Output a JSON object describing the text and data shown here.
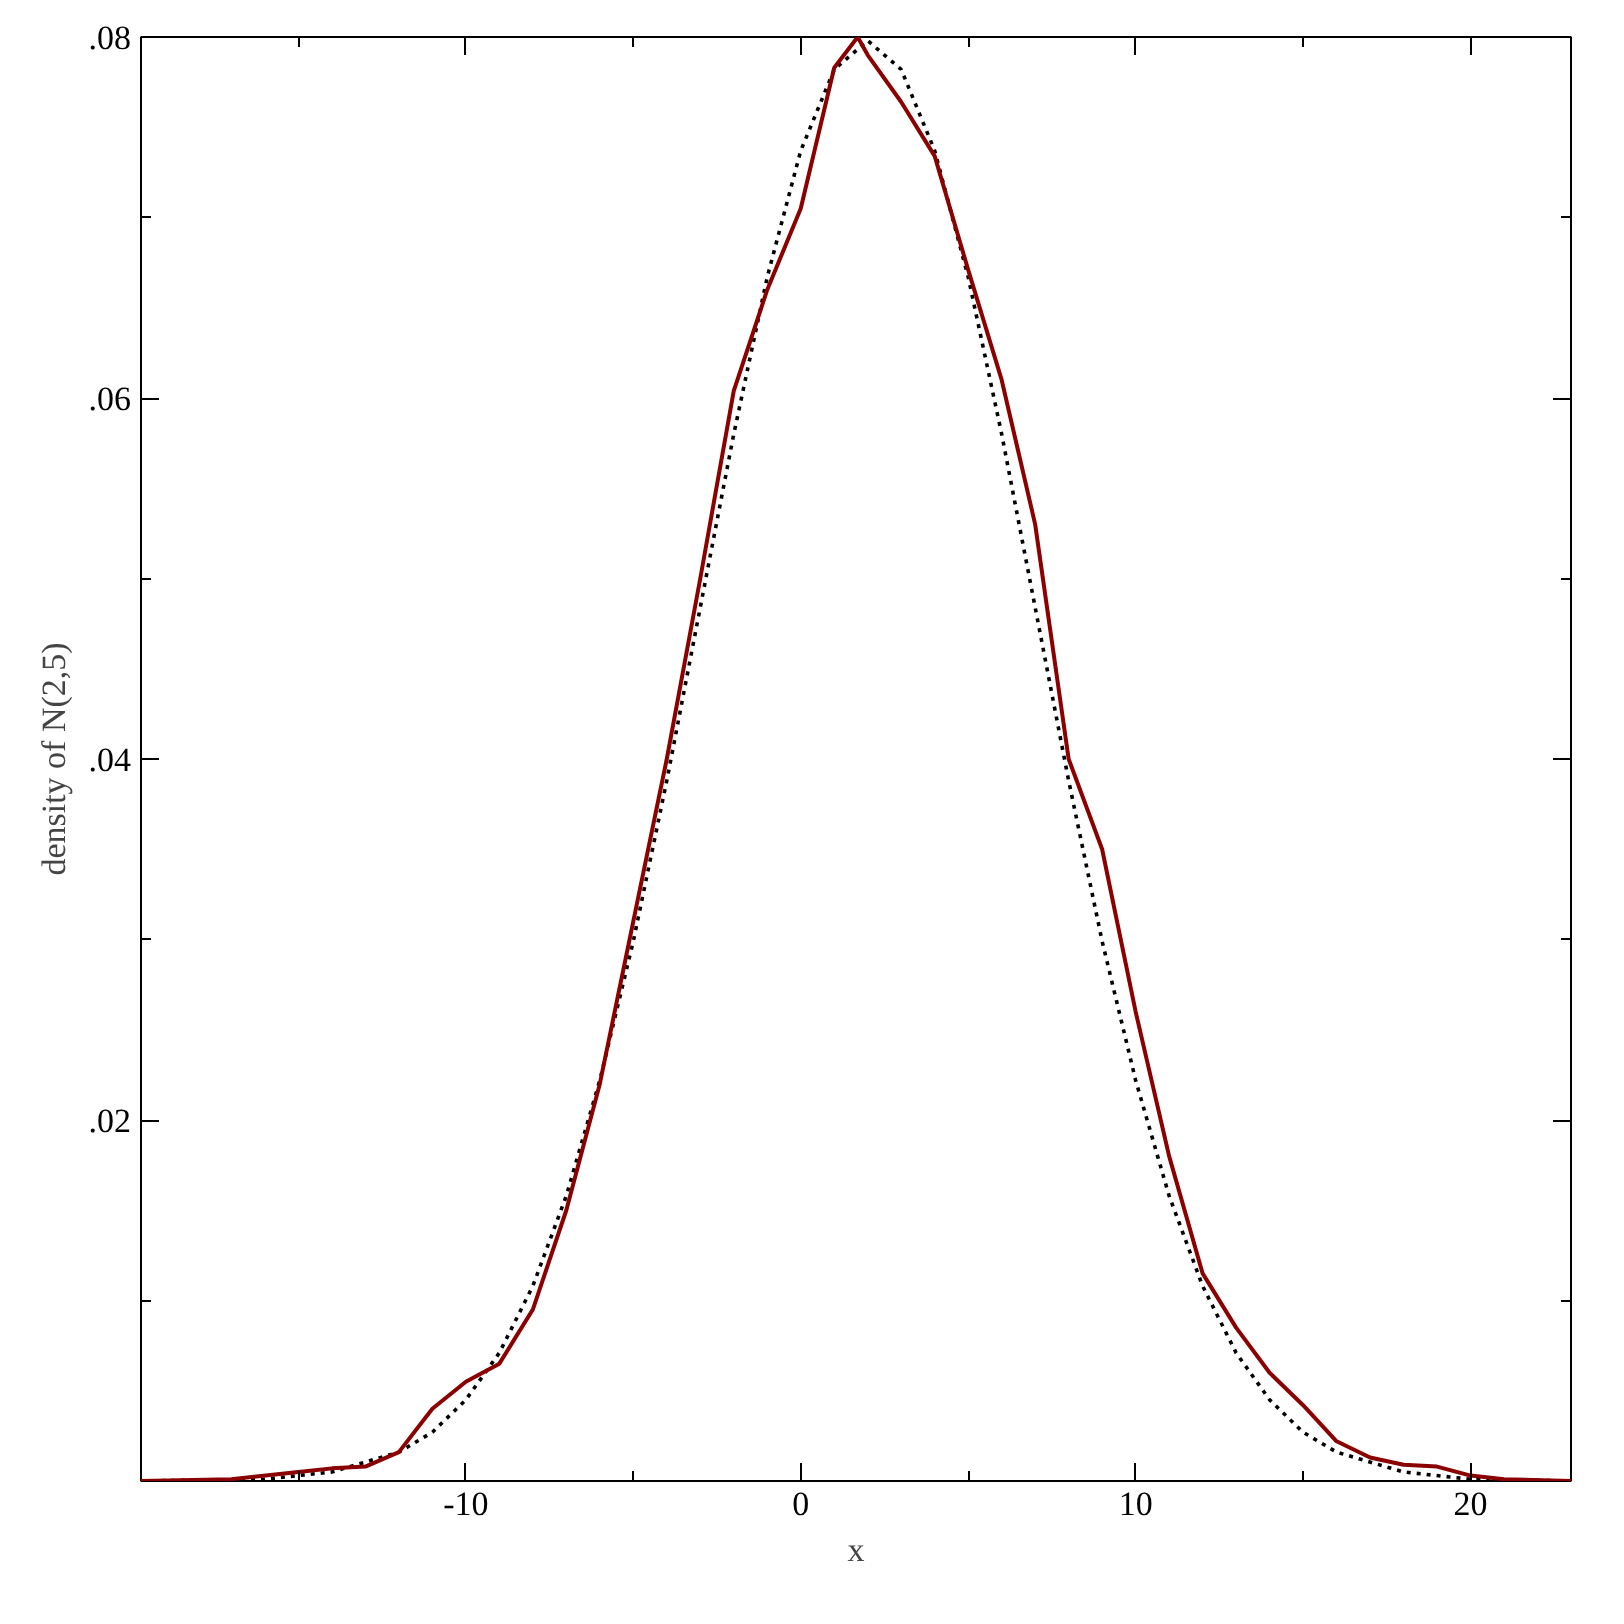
{
  "chart_data": {
    "type": "line",
    "xlabel": "x",
    "ylabel": "density of N(2,5)",
    "xlim": [
      -19.7,
      23
    ],
    "ylim": [
      0,
      0.08
    ],
    "xticks": [
      -10,
      0,
      10,
      20,
      {
        "value": -15,
        "label": null
      },
      {
        "value": -5,
        "label": null
      },
      {
        "value": 5,
        "label": null
      },
      {
        "value": 15,
        "label": null
      }
    ],
    "yticks": [
      {
        "value": 0.02,
        "label": ".02"
      },
      {
        "value": 0.04,
        "label": ".04"
      },
      {
        "value": 0.06,
        "label": ".06"
      },
      {
        "value": 0.08,
        "label": ".08"
      },
      {
        "value": 0.01,
        "label": null
      },
      {
        "value": 0.03,
        "label": null
      },
      {
        "value": 0.05,
        "label": null
      },
      {
        "value": 0.07,
        "label": null
      }
    ],
    "grid": false,
    "marker": "none",
    "series": [
      {
        "color": "#000000",
        "line_style": "dotted",
        "x": [
          -19.7,
          -16,
          -14,
          -12,
          -11,
          -10,
          -9,
          -8,
          -7,
          -6,
          -5,
          -4,
          -3,
          -2,
          -1,
          0,
          1,
          2,
          3,
          4,
          5,
          6,
          7,
          8,
          9,
          10,
          11,
          12,
          13,
          14,
          15,
          16,
          18,
          20,
          23
        ],
        "values": [
          0,
          0.0001,
          0.0005,
          0.0016,
          0.0027,
          0.0045,
          0.0071,
          0.0108,
          0.0158,
          0.0222,
          0.0299,
          0.0388,
          0.0484,
          0.058,
          0.0667,
          0.0737,
          0.0782,
          0.0798,
          0.0782,
          0.0737,
          0.0667,
          0.058,
          0.0484,
          0.0388,
          0.0299,
          0.0222,
          0.0158,
          0.0108,
          0.0071,
          0.0045,
          0.0027,
          0.0016,
          0.0005,
          0.0001,
          0
        ]
      },
      {
        "color": "#8b0000",
        "line_style": "solid",
        "x": [
          -19.7,
          -17,
          -15,
          -14,
          -13,
          -12,
          -11,
          -10,
          -9,
          -8,
          -7,
          -6,
          -5,
          -4,
          -3,
          -2,
          -1,
          0,
          1,
          1.7,
          2,
          3,
          4,
          5,
          6,
          7,
          8,
          9,
          10,
          11,
          12,
          13,
          14,
          15,
          16,
          17,
          18,
          19,
          20,
          21,
          23
        ],
        "values": [
          0,
          0.0001,
          0.0005,
          0.0007,
          0.0008,
          0.0016,
          0.004,
          0.0055,
          0.0065,
          0.0095,
          0.015,
          0.022,
          0.031,
          0.04,
          0.05,
          0.0604,
          0.066,
          0.0705,
          0.0783,
          0.08,
          0.079,
          0.0764,
          0.0734,
          0.0671,
          0.061,
          0.053,
          0.04,
          0.035,
          0.026,
          0.018,
          0.0115,
          0.0085,
          0.006,
          0.0042,
          0.0022,
          0.0013,
          0.0009,
          0.0008,
          0.0003,
          0.0001,
          0
        ]
      }
    ]
  }
}
